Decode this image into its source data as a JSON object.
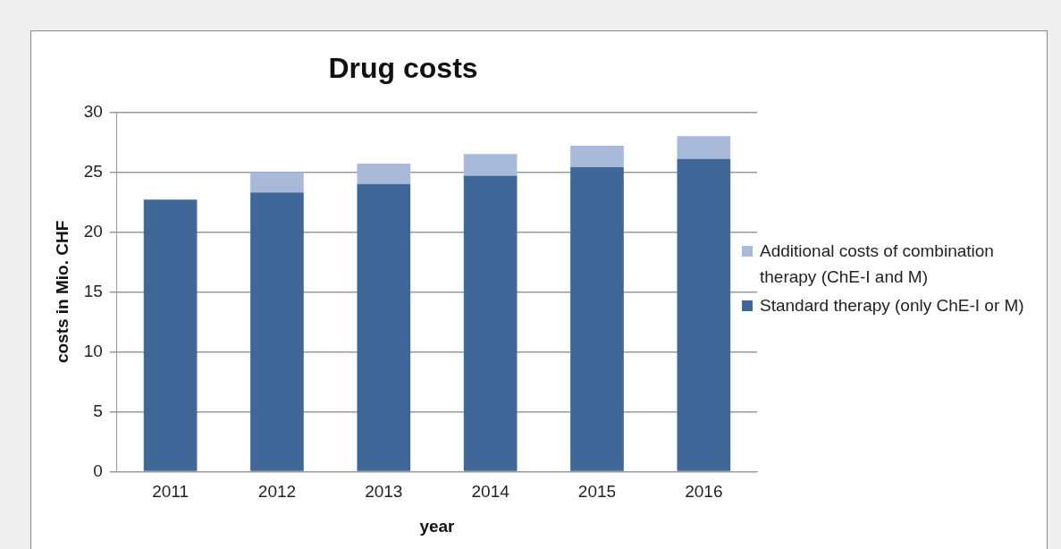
{
  "chart_data": {
    "type": "bar",
    "title": "Drug costs",
    "xlabel": "year",
    "ylabel": "costs in Mio. CHF",
    "categories": [
      "2011",
      "2012",
      "2013",
      "2014",
      "2015",
      "2016"
    ],
    "series": [
      {
        "name": "Standard therapy (only ChE-I or M)",
        "color": "#3f6899",
        "values": [
          22.7,
          23.3,
          24.0,
          24.7,
          25.4,
          26.1
        ]
      },
      {
        "name": "Additional costs of combination therapy (ChE-I and M)",
        "color": "#a9b9d9",
        "values": [
          0,
          1.7,
          1.7,
          1.8,
          1.8,
          1.9
        ]
      }
    ],
    "stacked": true,
    "ylim": [
      0,
      30
    ],
    "yticks": [
      0,
      5,
      10,
      15,
      20,
      25,
      30
    ],
    "grid": "y",
    "legend": "right"
  }
}
